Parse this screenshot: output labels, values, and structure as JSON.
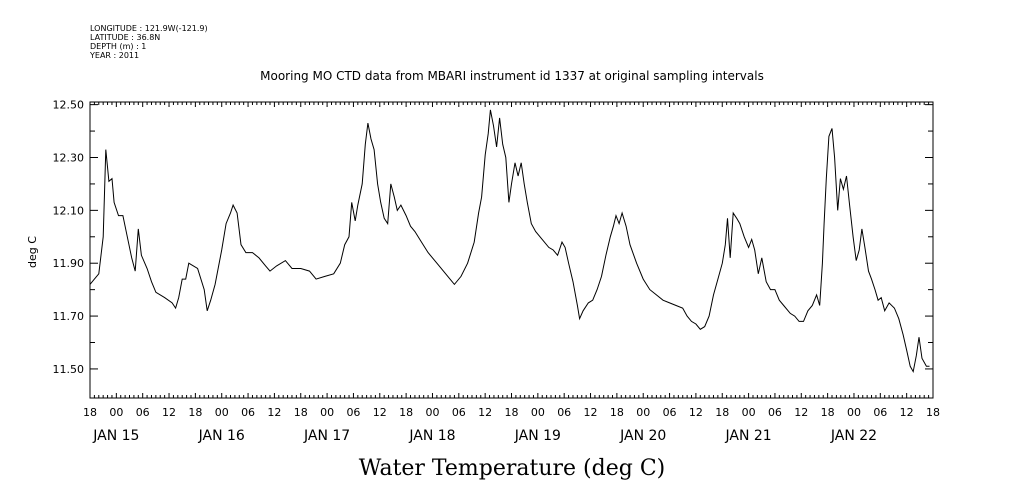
{
  "meta_lines": [
    "LONGITUDE : 121.9W(-121.9)",
    "LATITUDE : 36.8N",
    "DEPTH (m) : 1",
    "YEAR : 2011"
  ],
  "chart_data": {
    "type": "line",
    "title": "Mooring MO CTD data from MBARI instrument id 1337 at original sampling intervals",
    "xlabel": "",
    "ylabel": "deg C",
    "bottom_title": "Water Temperature (deg C)",
    "ylim": [
      11.39,
      12.51
    ],
    "y_ticks": [
      "11.50",
      "11.70",
      "11.90",
      "12.10",
      "12.30",
      "12.50"
    ],
    "x_unit": "hours since 2011-01-14 18:00",
    "xlim": [
      0,
      192
    ],
    "x_hour_ticks": [
      "18",
      "00",
      "06",
      "12",
      "18",
      "00",
      "06",
      "12",
      "18",
      "00",
      "06",
      "12",
      "18",
      "00",
      "06",
      "12",
      "18",
      "00",
      "06",
      "12",
      "18",
      "00",
      "06",
      "12",
      "18",
      "00",
      "06",
      "12",
      "18",
      "00",
      "06",
      "12",
      "18"
    ],
    "x_date_labels": [
      {
        "label": "JAN 15",
        "x": 6
      },
      {
        "label": "JAN 16",
        "x": 30
      },
      {
        "label": "JAN 17",
        "x": 54
      },
      {
        "label": "JAN 18",
        "x": 78
      },
      {
        "label": "JAN 19",
        "x": 102
      },
      {
        "label": "JAN 20",
        "x": 126
      },
      {
        "label": "JAN 21",
        "x": 150
      },
      {
        "label": "JAN 22",
        "x": 174
      }
    ],
    "series": [
      {
        "points": [
          [
            0,
            11.82
          ],
          [
            1,
            11.84
          ],
          [
            2,
            11.86
          ],
          [
            3,
            12.0
          ],
          [
            3.6,
            12.33
          ],
          [
            4.3,
            12.21
          ],
          [
            5,
            12.22
          ],
          [
            5.5,
            12.13
          ],
          [
            6.5,
            12.08
          ],
          [
            7.5,
            12.08
          ],
          [
            8.5,
            12.0
          ],
          [
            9.5,
            11.92
          ],
          [
            10.3,
            11.87
          ],
          [
            11,
            12.03
          ],
          [
            11.7,
            11.93
          ],
          [
            13,
            11.88
          ],
          [
            14,
            11.83
          ],
          [
            15,
            11.79
          ],
          [
            17,
            11.77
          ],
          [
            18.7,
            11.75
          ],
          [
            19.5,
            11.73
          ],
          [
            20.2,
            11.77
          ],
          [
            21,
            11.84
          ],
          [
            21.8,
            11.84
          ],
          [
            22.5,
            11.9
          ],
          [
            24.5,
            11.88
          ],
          [
            26,
            11.8
          ],
          [
            26.7,
            11.72
          ],
          [
            27.5,
            11.76
          ],
          [
            28.5,
            11.82
          ],
          [
            30,
            11.95
          ],
          [
            31,
            12.05
          ],
          [
            32,
            12.09
          ],
          [
            32.6,
            12.12
          ],
          [
            33.5,
            12.09
          ],
          [
            34.4,
            11.97
          ],
          [
            35.5,
            11.94
          ],
          [
            37,
            11.94
          ],
          [
            38.5,
            11.92
          ],
          [
            40,
            11.89
          ],
          [
            41,
            11.87
          ],
          [
            42.5,
            11.89
          ],
          [
            44.5,
            11.91
          ],
          [
            46,
            11.88
          ],
          [
            48,
            11.88
          ],
          [
            50,
            11.87
          ],
          [
            51.5,
            11.84
          ],
          [
            53.5,
            11.85
          ],
          [
            55.5,
            11.86
          ],
          [
            57,
            11.9
          ],
          [
            58,
            11.97
          ],
          [
            59,
            12.0
          ],
          [
            59.6,
            12.13
          ],
          [
            60.4,
            12.06
          ],
          [
            61,
            12.12
          ],
          [
            62,
            12.2
          ],
          [
            62.7,
            12.35
          ],
          [
            63.3,
            12.43
          ],
          [
            64,
            12.37
          ],
          [
            64.7,
            12.33
          ],
          [
            65.5,
            12.2
          ],
          [
            66.2,
            12.13
          ],
          [
            67,
            12.07
          ],
          [
            67.8,
            12.05
          ],
          [
            68.5,
            12.2
          ],
          [
            69.3,
            12.15
          ],
          [
            70,
            12.1
          ],
          [
            70.8,
            12.12
          ],
          [
            72,
            12.08
          ],
          [
            73,
            12.04
          ],
          [
            74,
            12.02
          ],
          [
            75.5,
            11.98
          ],
          [
            77,
            11.94
          ],
          [
            79,
            11.9
          ],
          [
            80.5,
            11.87
          ],
          [
            82,
            11.84
          ],
          [
            83,
            11.82
          ],
          [
            84.5,
            11.85
          ],
          [
            86,
            11.9
          ],
          [
            87.5,
            11.98
          ],
          [
            88.5,
            12.09
          ],
          [
            89.2,
            12.15
          ],
          [
            90,
            12.31
          ],
          [
            90.7,
            12.39
          ],
          [
            91.2,
            12.48
          ],
          [
            91.9,
            12.42
          ],
          [
            92.6,
            12.34
          ],
          [
            93.3,
            12.45
          ],
          [
            94,
            12.35
          ],
          [
            94.7,
            12.3
          ],
          [
            95.4,
            12.13
          ],
          [
            96,
            12.2
          ],
          [
            96.8,
            12.28
          ],
          [
            97.5,
            12.23
          ],
          [
            98.2,
            12.28
          ],
          [
            98.9,
            12.2
          ],
          [
            99.6,
            12.13
          ],
          [
            100.5,
            12.05
          ],
          [
            101.5,
            12.02
          ],
          [
            103,
            11.99
          ],
          [
            104.5,
            11.96
          ],
          [
            105.5,
            11.95
          ],
          [
            106.5,
            11.93
          ],
          [
            107.5,
            11.98
          ],
          [
            108.2,
            11.96
          ],
          [
            109,
            11.9
          ],
          [
            110,
            11.83
          ],
          [
            111,
            11.74
          ],
          [
            111.5,
            11.69
          ],
          [
            112.3,
            11.72
          ],
          [
            113.5,
            11.75
          ],
          [
            114.5,
            11.76
          ],
          [
            115.5,
            11.8
          ],
          [
            116.5,
            11.85
          ],
          [
            117.5,
            11.93
          ],
          [
            118.5,
            12.0
          ],
          [
            119.2,
            12.04
          ],
          [
            119.8,
            12.08
          ],
          [
            120.5,
            12.05
          ],
          [
            121.2,
            12.09
          ],
          [
            122.1,
            12.04
          ],
          [
            123,
            11.97
          ],
          [
            124.5,
            11.9
          ],
          [
            126,
            11.84
          ],
          [
            127.5,
            11.8
          ],
          [
            129,
            11.78
          ],
          [
            130.5,
            11.76
          ],
          [
            132,
            11.75
          ],
          [
            133.5,
            11.74
          ],
          [
            135,
            11.73
          ],
          [
            136,
            11.7
          ],
          [
            137,
            11.68
          ],
          [
            138,
            11.67
          ],
          [
            139,
            11.65
          ],
          [
            140,
            11.66
          ],
          [
            141,
            11.7
          ],
          [
            142,
            11.78
          ],
          [
            143,
            11.84
          ],
          [
            144,
            11.9
          ],
          [
            144.7,
            11.97
          ],
          [
            145.2,
            12.07
          ],
          [
            145.8,
            11.92
          ],
          [
            146.5,
            12.09
          ],
          [
            147.3,
            12.07
          ],
          [
            148,
            12.05
          ],
          [
            149,
            12.0
          ],
          [
            150,
            11.96
          ],
          [
            150.7,
            11.99
          ],
          [
            151.4,
            11.95
          ],
          [
            152.2,
            11.86
          ],
          [
            153,
            11.92
          ],
          [
            154,
            11.83
          ],
          [
            155,
            11.8
          ],
          [
            156,
            11.8
          ],
          [
            157,
            11.76
          ],
          [
            158,
            11.74
          ],
          [
            159.5,
            11.71
          ],
          [
            160.5,
            11.7
          ],
          [
            161.5,
            11.68
          ],
          [
            162.5,
            11.68
          ],
          [
            163.5,
            11.72
          ],
          [
            164.5,
            11.74
          ],
          [
            165.5,
            11.78
          ],
          [
            166.2,
            11.74
          ],
          [
            166.8,
            11.9
          ],
          [
            167.2,
            12.05
          ],
          [
            167.7,
            12.22
          ],
          [
            168.3,
            12.38
          ],
          [
            169,
            12.41
          ],
          [
            169.6,
            12.3
          ],
          [
            170.3,
            12.1
          ],
          [
            170.9,
            12.22
          ],
          [
            171.6,
            12.18
          ],
          [
            172.3,
            12.23
          ],
          [
            173,
            12.12
          ],
          [
            173.8,
            12.0
          ],
          [
            174.5,
            11.91
          ],
          [
            175.2,
            11.95
          ],
          [
            175.8,
            12.03
          ],
          [
            176.5,
            11.96
          ],
          [
            177.3,
            11.87
          ],
          [
            178,
            11.84
          ],
          [
            178.8,
            11.8
          ],
          [
            179.5,
            11.76
          ],
          [
            180.2,
            11.77
          ],
          [
            181,
            11.72
          ],
          [
            182,
            11.75
          ],
          [
            183.2,
            11.73
          ],
          [
            184.2,
            11.69
          ],
          [
            185.2,
            11.63
          ],
          [
            186,
            11.57
          ],
          [
            186.8,
            11.51
          ],
          [
            187.5,
            11.49
          ],
          [
            188.2,
            11.55
          ],
          [
            188.8,
            11.62
          ],
          [
            189.5,
            11.54
          ],
          [
            190.5,
            11.51
          ],
          [
            191.2,
            11.51
          ]
        ]
      }
    ]
  }
}
